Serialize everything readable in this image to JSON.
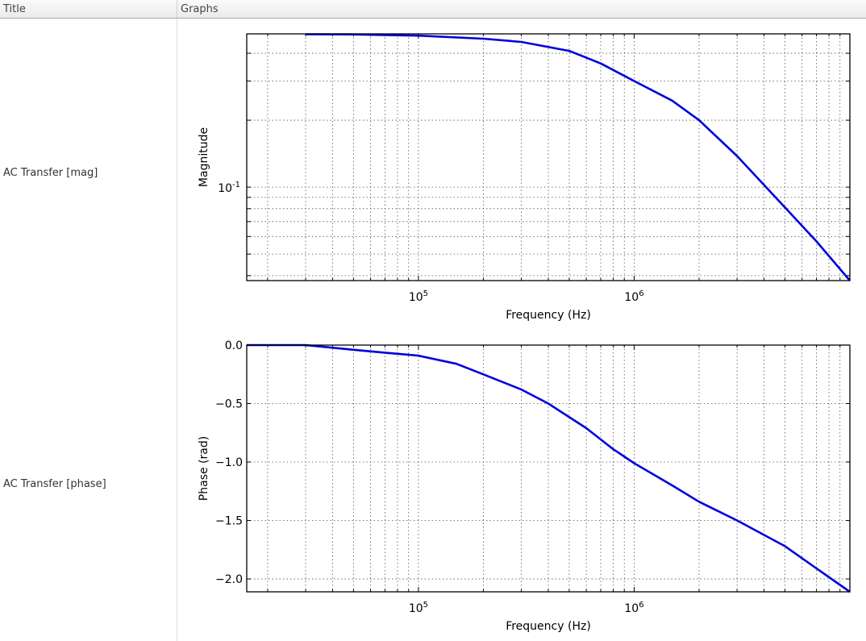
{
  "table": {
    "columns": [
      "Title",
      "Graphs"
    ],
    "rows": [
      {
        "title": "AC Transfer [mag]"
      },
      {
        "title": "AC Transfer [phase]"
      }
    ]
  },
  "colors": {
    "line": "#0000dd",
    "grid": "#555555",
    "axis": "#000000"
  },
  "chart_data": [
    {
      "type": "line",
      "title": "",
      "xlabel": "Frequency (Hz)",
      "ylabel": "Magnitude",
      "xscale": "log",
      "yscale": "log",
      "xlim": [
        16000,
        10000000
      ],
      "ylim": [
        0.038,
        0.489
      ],
      "xticks": [
        {
          "value": 100000,
          "label": "10^5"
        },
        {
          "value": 1000000,
          "label": "10^6"
        }
      ],
      "yticks": [
        {
          "value": 0.1,
          "label": "10^-1"
        }
      ],
      "grid": true,
      "series": [
        {
          "name": "AC Transfer [mag]",
          "x": [
            30000,
            50000,
            100000,
            200000,
            300000,
            500000,
            700000,
            1000000,
            1500000,
            2000000,
            3000000,
            5000000,
            7000000,
            10000000
          ],
          "y": [
            0.487,
            0.486,
            0.48,
            0.465,
            0.45,
            0.41,
            0.36,
            0.3,
            0.245,
            0.2,
            0.138,
            0.081,
            0.057,
            0.038
          ]
        }
      ]
    },
    {
      "type": "line",
      "title": "",
      "xlabel": "Frequency (Hz)",
      "ylabel": "Phase (rad)",
      "xscale": "log",
      "yscale": "linear",
      "xlim": [
        16000,
        10000000
      ],
      "ylim": [
        -2.11,
        0.0
      ],
      "xticks": [
        {
          "value": 100000,
          "label": "10^5"
        },
        {
          "value": 1000000,
          "label": "10^6"
        }
      ],
      "yticks": [
        {
          "value": 0.0,
          "label": "0.0"
        },
        {
          "value": -0.5,
          "label": "−0.5"
        },
        {
          "value": -1.0,
          "label": "−1.0"
        },
        {
          "value": -1.5,
          "label": "−1.5"
        },
        {
          "value": -2.0,
          "label": "−2.0"
        }
      ],
      "grid": true,
      "series": [
        {
          "name": "AC Transfer [phase]",
          "x": [
            16000,
            30000,
            50000,
            70000,
            100000,
            150000,
            200000,
            300000,
            400000,
            600000,
            800000,
            1000000,
            1500000,
            2000000,
            3000000,
            5000000,
            7000000,
            10000000
          ],
          "y": [
            0.0,
            0.0,
            -0.04,
            -0.065,
            -0.09,
            -0.16,
            -0.25,
            -0.38,
            -0.5,
            -0.71,
            -0.89,
            -1.01,
            -1.2,
            -1.34,
            -1.5,
            -1.72,
            -1.91,
            -2.11
          ]
        }
      ]
    }
  ]
}
